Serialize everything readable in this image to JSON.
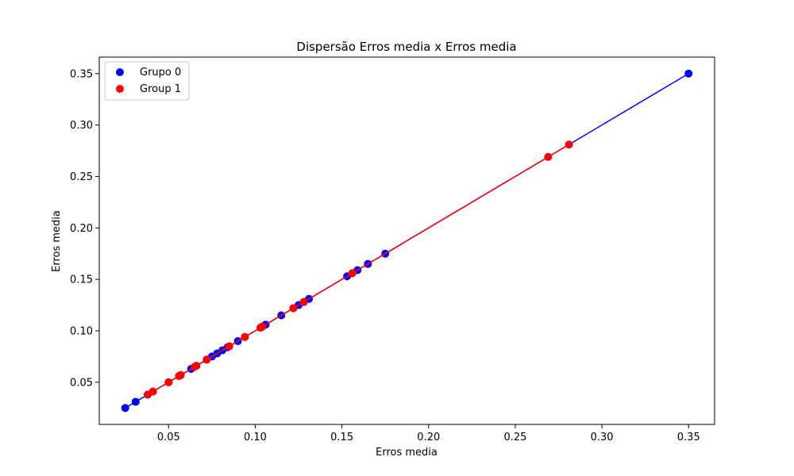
{
  "chart_data": {
    "type": "scatter",
    "title": "Dispersão Erros media x Erros media",
    "xlabel": "Erros media",
    "ylabel": "Erros media",
    "xlim": [
      0.01,
      0.365
    ],
    "ylim": [
      0.009,
      0.366
    ],
    "xticks": [
      0.05,
      0.1,
      0.15,
      0.2,
      0.25,
      0.3,
      0.35
    ],
    "xtick_labels": [
      "0.05",
      "0.10",
      "0.15",
      "0.20",
      "0.25",
      "0.30",
      "0.35"
    ],
    "yticks": [
      0.05,
      0.1,
      0.15,
      0.2,
      0.25,
      0.3,
      0.35
    ],
    "ytick_labels": [
      "0.05",
      "0.10",
      "0.15",
      "0.20",
      "0.25",
      "0.30",
      "0.35"
    ],
    "grid": false,
    "legend_position": "top-left",
    "series": [
      {
        "name": "Grupo 0",
        "color": "#0000ff",
        "points": [
          [
            0.025,
            0.025
          ],
          [
            0.031,
            0.031
          ],
          [
            0.038,
            0.038
          ],
          [
            0.041,
            0.041
          ],
          [
            0.05,
            0.05
          ],
          [
            0.057,
            0.057
          ],
          [
            0.063,
            0.063
          ],
          [
            0.066,
            0.066
          ],
          [
            0.072,
            0.072
          ],
          [
            0.075,
            0.075
          ],
          [
            0.078,
            0.078
          ],
          [
            0.081,
            0.081
          ],
          [
            0.084,
            0.084
          ],
          [
            0.09,
            0.09
          ],
          [
            0.094,
            0.094
          ],
          [
            0.104,
            0.104
          ],
          [
            0.106,
            0.106
          ],
          [
            0.115,
            0.115
          ],
          [
            0.122,
            0.122
          ],
          [
            0.125,
            0.125
          ],
          [
            0.128,
            0.128
          ],
          [
            0.131,
            0.131
          ],
          [
            0.153,
            0.153
          ],
          [
            0.156,
            0.156
          ],
          [
            0.159,
            0.159
          ],
          [
            0.165,
            0.165
          ],
          [
            0.175,
            0.175
          ],
          [
            0.35,
            0.35
          ]
        ]
      },
      {
        "name": "Group 1",
        "color": "#ff0000",
        "points": [
          [
            0.038,
            0.038
          ],
          [
            0.041,
            0.041
          ],
          [
            0.05,
            0.05
          ],
          [
            0.056,
            0.056
          ],
          [
            0.057,
            0.057
          ],
          [
            0.065,
            0.065
          ],
          [
            0.066,
            0.066
          ],
          [
            0.072,
            0.072
          ],
          [
            0.085,
            0.085
          ],
          [
            0.094,
            0.094
          ],
          [
            0.103,
            0.103
          ],
          [
            0.104,
            0.104
          ],
          [
            0.122,
            0.122
          ],
          [
            0.128,
            0.128
          ],
          [
            0.156,
            0.156
          ],
          [
            0.269,
            0.269
          ],
          [
            0.281,
            0.281
          ]
        ]
      }
    ]
  }
}
